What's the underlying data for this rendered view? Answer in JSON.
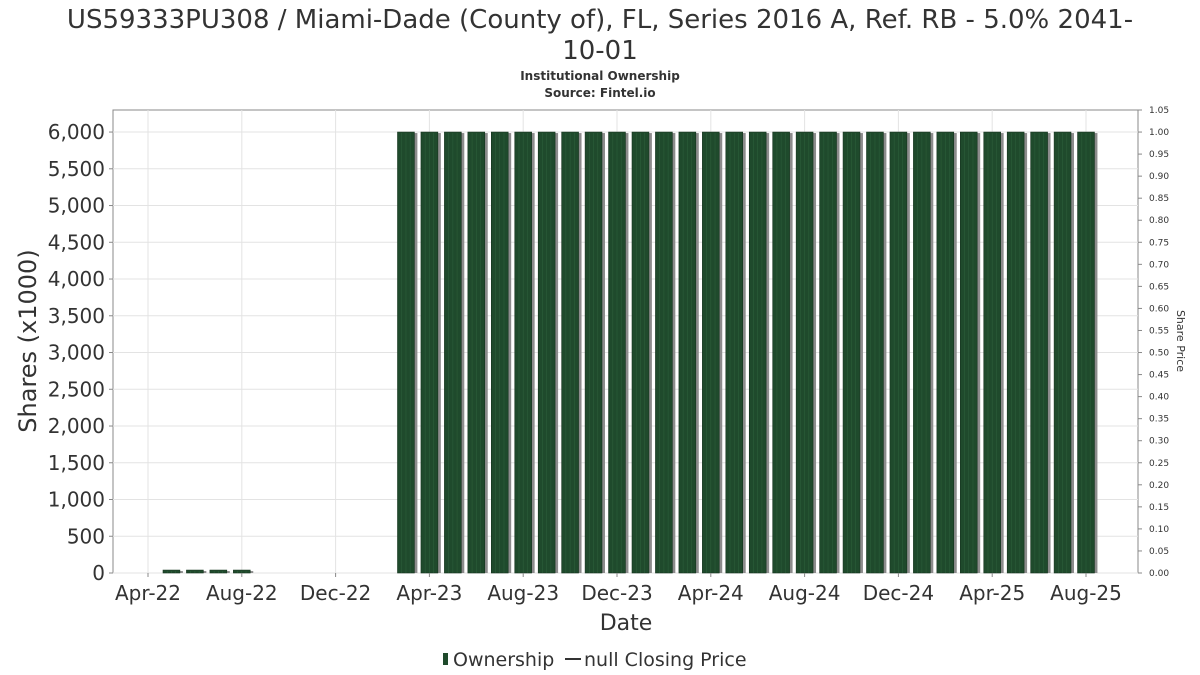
{
  "chart_data": {
    "type": "bar",
    "title": "US59333PU308 / Miami-Dade (County of), FL, Series 2016 A, Ref. RB - 5.0% 2041-10-01",
    "title_line1": "US59333PU308 / Miami-Dade (County of), FL, Series 2016 A, Ref. RB - 5.0% 2041-",
    "title_line2": "10-01",
    "subtitle": "Institutional Ownership",
    "source": "Source: Fintel.io",
    "xlabel": "Date",
    "ylabel": "Shares (x1000)",
    "y2label": "Share Price",
    "ylim": [
      0,
      6300
    ],
    "y2lim": [
      0,
      1.05
    ],
    "grid": true,
    "legend_position": "bottom-center",
    "x_tick_labels": [
      "Apr-22",
      "Aug-22",
      "Dec-22",
      "Apr-23",
      "Aug-23",
      "Dec-23",
      "Apr-24",
      "Aug-24",
      "Dec-24",
      "Apr-25",
      "Aug-25"
    ],
    "y_tick_labels": [
      "0",
      "500",
      "1,000",
      "1,500",
      "2,000",
      "2,500",
      "3,000",
      "3,500",
      "4,000",
      "4,500",
      "5,000",
      "5,500",
      "6,000"
    ],
    "y2_tick_labels": [
      "0.00",
      "0.05",
      "0.10",
      "0.15",
      "0.20",
      "0.25",
      "0.30",
      "0.35",
      "0.40",
      "0.45",
      "0.50",
      "0.55",
      "0.60",
      "0.65",
      "0.70",
      "0.75",
      "0.80",
      "0.85",
      "0.90",
      "0.95",
      "1.00",
      "1.05"
    ],
    "series": [
      {
        "name": "Ownership",
        "color": "#1f4a2c",
        "x": [
          "2022-05",
          "2022-06",
          "2022-07",
          "2022-08",
          "2023-03",
          "2023-04",
          "2023-05",
          "2023-06",
          "2023-07",
          "2023-08",
          "2023-09",
          "2023-10",
          "2023-11",
          "2023-12",
          "2024-01",
          "2024-02",
          "2024-03",
          "2024-04",
          "2024-05",
          "2024-06",
          "2024-07",
          "2024-08",
          "2024-09",
          "2024-10",
          "2024-11",
          "2024-12",
          "2025-01",
          "2025-02",
          "2025-03",
          "2025-04",
          "2025-05",
          "2025-06",
          "2025-07",
          "2025-08"
        ],
        "values": [
          40,
          40,
          40,
          40,
          6000,
          6000,
          6000,
          6000,
          6000,
          6000,
          6000,
          6000,
          6000,
          6000,
          6000,
          6000,
          6000,
          6000,
          6000,
          6000,
          6000,
          6000,
          6000,
          6000,
          6000,
          6000,
          6000,
          6000,
          6000,
          6000,
          6000,
          6000,
          6000,
          6000
        ]
      },
      {
        "name": "null Closing Price",
        "color": "#333333",
        "values": []
      }
    ]
  }
}
